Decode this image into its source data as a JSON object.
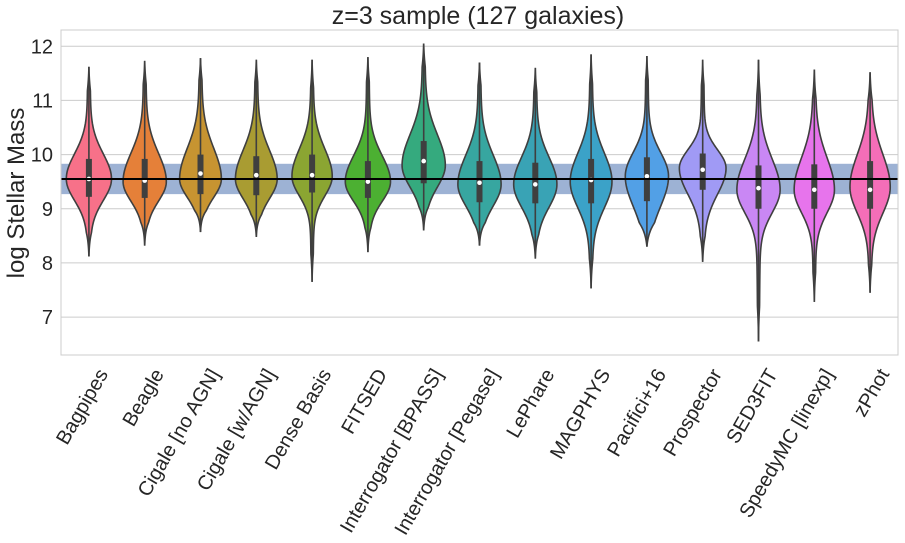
{
  "chart_data": {
    "type": "violin",
    "title": "z=3 sample (127 galaxies)",
    "xlabel": "",
    "ylabel": "log Stellar Mass",
    "ylim": [
      6.3,
      12.3
    ],
    "yticks": [
      7,
      8,
      9,
      10,
      11,
      12
    ],
    "grid": true,
    "reference": {
      "value": 9.55,
      "band": [
        9.27,
        9.83
      ],
      "line_color": "#000000",
      "band_color": "#4c72b0"
    },
    "categories": [
      "Bagpipes",
      "Beagle",
      "Cigale [no AGN]",
      "Cigale [w/AGN]",
      "Dense Basis",
      "FITSED",
      "Interrogator [BPASS]",
      "Interrogator [Pegase]",
      "LePhare",
      "MAGPHYS",
      "Pacifici+16",
      "Prospector",
      "SED3FIT",
      "SpeedyMC [linexp]",
      "zPhot"
    ],
    "series": [
      {
        "color": "#f77189",
        "min": 8.12,
        "max": 11.62,
        "q1": 9.22,
        "median": 9.55,
        "q3": 9.92,
        "mode": 9.55,
        "peak_width": 0.92
      },
      {
        "color": "#e58039",
        "min": 8.32,
        "max": 11.73,
        "q1": 9.2,
        "median": 9.52,
        "q3": 9.92,
        "mode": 9.5,
        "peak_width": 0.88
      },
      {
        "color": "#c79431",
        "min": 8.57,
        "max": 11.78,
        "q1": 9.27,
        "median": 9.65,
        "q3": 10.0,
        "mode": 9.55,
        "peak_width": 0.85
      },
      {
        "color": "#a99c32",
        "min": 8.48,
        "max": 11.75,
        "q1": 9.25,
        "median": 9.62,
        "q3": 9.97,
        "mode": 9.55,
        "peak_width": 0.85
      },
      {
        "color": "#8ba532",
        "min": 7.65,
        "max": 11.75,
        "q1": 9.3,
        "median": 9.62,
        "q3": 10.0,
        "mode": 9.6,
        "peak_width": 0.82
      },
      {
        "color": "#4cb032",
        "min": 8.2,
        "max": 11.8,
        "q1": 9.2,
        "median": 9.5,
        "q3": 9.88,
        "mode": 9.5,
        "peak_width": 0.92
      },
      {
        "color": "#35aa7e",
        "min": 8.6,
        "max": 12.05,
        "q1": 9.47,
        "median": 9.88,
        "q3": 10.25,
        "mode": 9.8,
        "peak_width": 0.88
      },
      {
        "color": "#37a6a0",
        "min": 8.32,
        "max": 11.7,
        "q1": 9.12,
        "median": 9.48,
        "q3": 9.88,
        "mode": 9.45,
        "peak_width": 0.88
      },
      {
        "color": "#39a3b5",
        "min": 8.08,
        "max": 11.6,
        "q1": 9.1,
        "median": 9.45,
        "q3": 9.85,
        "mode": 9.45,
        "peak_width": 0.88
      },
      {
        "color": "#3ba2c8",
        "min": 7.53,
        "max": 11.85,
        "q1": 9.1,
        "median": 9.53,
        "q3": 9.92,
        "mode": 9.5,
        "peak_width": 0.85
      },
      {
        "color": "#52a0e6",
        "min": 8.3,
        "max": 11.82,
        "q1": 9.14,
        "median": 9.6,
        "q3": 9.95,
        "mode": 9.6,
        "peak_width": 0.88
      },
      {
        "color": "#a09af5",
        "min": 8.02,
        "max": 11.75,
        "q1": 9.35,
        "median": 9.72,
        "q3": 10.02,
        "mode": 9.75,
        "peak_width": 0.95
      },
      {
        "color": "#c987f4",
        "min": 6.55,
        "max": 11.75,
        "q1": 9.0,
        "median": 9.38,
        "q3": 9.8,
        "mode": 9.35,
        "peak_width": 0.88
      },
      {
        "color": "#e774ec",
        "min": 7.28,
        "max": 11.57,
        "q1": 9.0,
        "median": 9.35,
        "q3": 9.82,
        "mode": 9.35,
        "peak_width": 0.82
      },
      {
        "color": "#f46eb8",
        "min": 7.45,
        "max": 11.52,
        "q1": 9.0,
        "median": 9.35,
        "q3": 9.88,
        "mode": 9.4,
        "peak_width": 0.82
      }
    ]
  }
}
